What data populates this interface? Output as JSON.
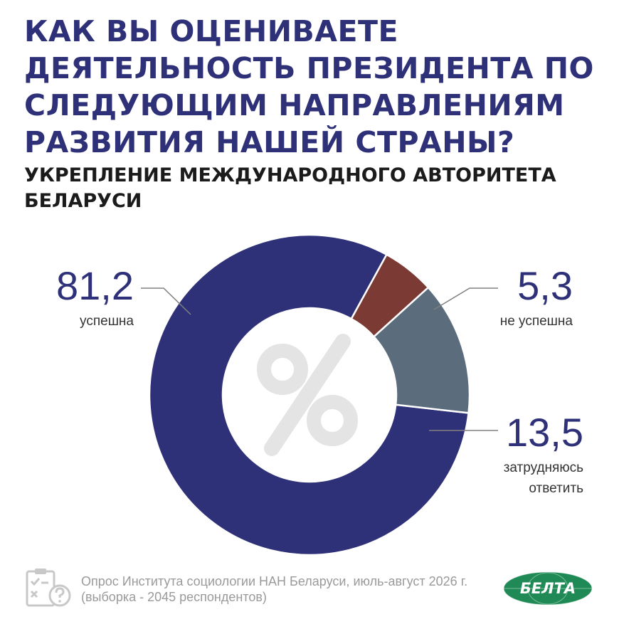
{
  "header": {
    "title": "КАК ВЫ ОЦЕНИВАЕТЕ ДЕЯТЕЛЬНОСТЬ ПРЕЗИДЕНТА ПО СЛЕДУЮЩИМ НАПРАВЛЕНИЯМ РАЗВИТИЯ НАШЕЙ СТРАНЫ?",
    "subtitle": "УКРЕПЛЕНИЕ МЕЖДУНАРОДНОГО АВТОРИТЕТА БЕЛАРУСИ"
  },
  "chart_data": {
    "type": "pie",
    "donut": true,
    "center_symbol": "%",
    "slices": [
      {
        "label": "успешна",
        "value": 81.2,
        "value_text": "81,2",
        "color": "#2e3178"
      },
      {
        "label": "не успешна",
        "value": 5.3,
        "value_text": "5,3",
        "color": "#7b3a33"
      },
      {
        "label": "затрудняюсь ответить",
        "label_lines": [
          "затрудняюсь",
          "ответить"
        ],
        "value": 13.5,
        "value_text": "13,5",
        "color": "#5b6c7c"
      }
    ]
  },
  "footer": {
    "source_line1": "Опрос Института социологии НАН Беларуси, июль-август 2026 г.",
    "source_line2": "(выборка - 2045 респондентов)",
    "icon": "survey-clipboard-icon",
    "logo_text": "БЕЛТА",
    "logo_color": "#1f8a55"
  }
}
